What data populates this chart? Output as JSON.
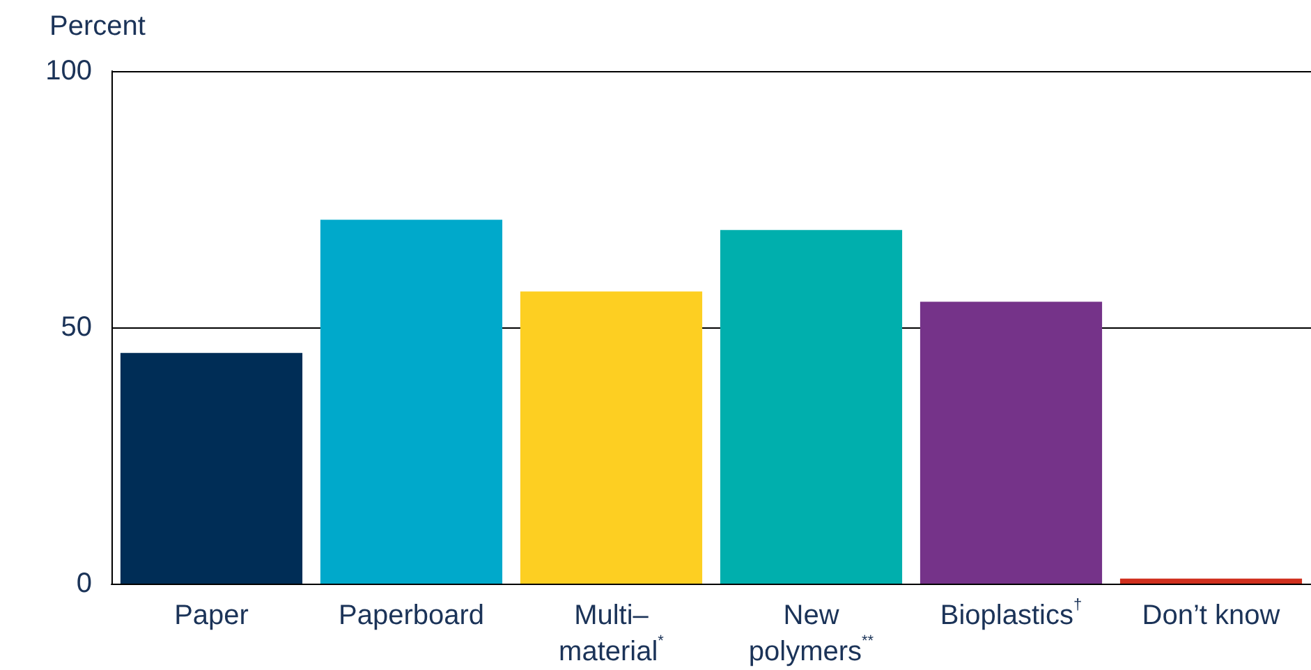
{
  "chart_data": {
    "type": "bar",
    "ylabel": "Percent",
    "categories": [
      "Paper",
      "Paperboard",
      "Multi–\nmaterial$^{*}$",
      "New\npolymers$^{**}$",
      "Bioplastics$^{†}$",
      "Don’t know"
    ],
    "values": [
      45,
      71,
      57,
      69,
      55,
      1
    ],
    "colors": [
      "#002d56",
      "#00a9cb",
      "#fdcf22",
      "#00afad",
      "#753389",
      "#d0301e"
    ],
    "ylim": [
      0,
      100
    ],
    "yticks": [
      0,
      50,
      100
    ],
    "grid": "y"
  }
}
